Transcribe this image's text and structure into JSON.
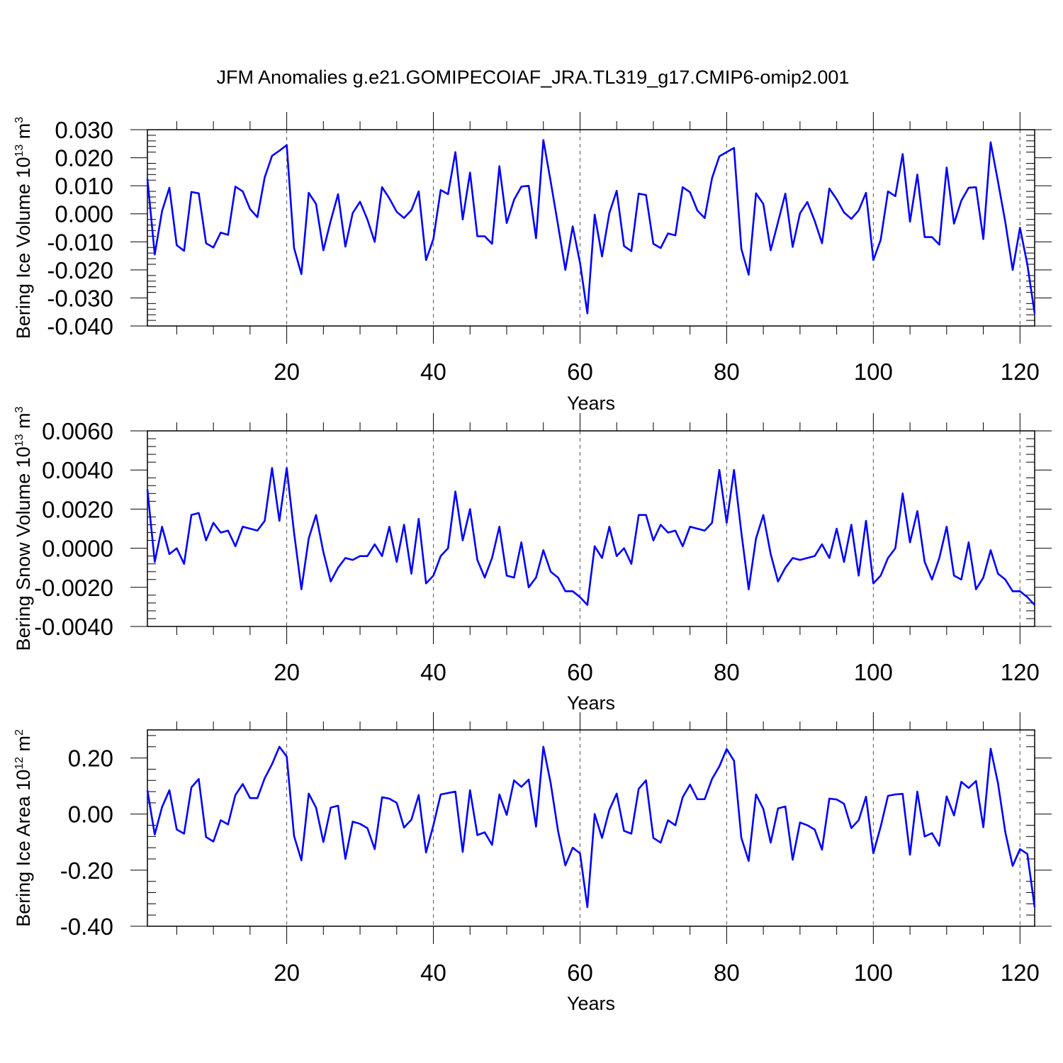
{
  "chart_data": [
    {
      "type": "line",
      "title": "JFM Anomalies g.e21.GOMIPECOIAF_JRA.TL319_g17.CMIP6-omip2.001",
      "ylabel": "Bering Ice Volume 10",
      "ylabel_exp": "13",
      "ylabel_unit": " m",
      "ylabel_unit_exp": "3",
      "xlabel": "Years",
      "xlim": [
        1,
        122
      ],
      "ylim": [
        -0.04,
        0.03
      ],
      "xticks": [
        20,
        40,
        60,
        80,
        100,
        120
      ],
      "xtick_labels": [
        "20",
        "40",
        "60",
        "80",
        "100",
        "120"
      ],
      "yticks": [
        -0.04,
        -0.03,
        -0.02,
        -0.01,
        0.0,
        0.01,
        0.02,
        0.03
      ],
      "ytick_labels": [
        "-0.040",
        "-0.030",
        "-0.020",
        "-0.010",
        "0.000",
        "0.010",
        "0.020",
        "0.030"
      ],
      "gridlines_x": [
        20,
        40,
        60,
        80,
        100,
        120
      ],
      "series": [
        {
          "name": "Bering Ice Volume",
          "color": "#0000ff",
          "x_start": 1,
          "values": [
            0.0125,
            -0.0145,
            0.001,
            0.0093,
            -0.0112,
            -0.0132,
            0.0078,
            0.0073,
            -0.0105,
            -0.012,
            -0.0067,
            -0.0075,
            0.0097,
            0.008,
            0.0017,
            -0.0012,
            0.013,
            0.0207,
            0.0225,
            0.0245,
            -0.0122,
            -0.0215,
            0.0075,
            0.0035,
            -0.013,
            -0.0025,
            0.007,
            -0.0117,
            0.0003,
            0.0043,
            -0.002,
            -0.01,
            0.0095,
            0.0055,
            0.0007,
            -0.0015,
            0.0013,
            0.008,
            -0.0165,
            -0.009,
            0.0085,
            0.007,
            0.022,
            -0.002,
            0.0147,
            -0.008,
            -0.008,
            -0.0107,
            0.017,
            -0.0033,
            0.005,
            0.0097,
            0.01,
            -0.0087,
            0.0263,
            0.0115,
            -0.004,
            -0.02,
            -0.0045,
            -0.0175,
            -0.0355,
            -0.0003,
            -0.0152,
            0.0003,
            0.0082,
            -0.0115,
            -0.0133,
            0.0072,
            0.0067,
            -0.0107,
            -0.0122,
            -0.007,
            -0.0077,
            0.0095,
            0.0077,
            0.0012,
            -0.0015,
            0.0127,
            0.0205,
            0.022,
            0.0235,
            -0.0125,
            -0.0217,
            0.0073,
            0.0035,
            -0.013,
            -0.003,
            0.0072,
            -0.0118,
            0.0002,
            0.0042,
            -0.0025,
            -0.0105,
            0.009,
            0.0052,
            0.0005,
            -0.0018,
            0.0012,
            0.0075,
            -0.0165,
            -0.0093,
            0.008,
            0.0063,
            0.0213,
            -0.0028,
            0.014,
            -0.0083,
            -0.0083,
            -0.011,
            0.0165,
            -0.0035,
            0.0047,
            0.0093,
            0.0095,
            -0.009,
            0.0255,
            0.0115,
            -0.003,
            -0.02,
            -0.005,
            -0.018,
            -0.0355
          ]
        }
      ]
    },
    {
      "type": "line",
      "title": "",
      "ylabel": "Bering Snow Volume 10",
      "ylabel_exp": "13",
      "ylabel_unit": " m",
      "ylabel_unit_exp": "3",
      "xlabel": "Years",
      "xlim": [
        1,
        122
      ],
      "ylim": [
        -0.004,
        0.006
      ],
      "xticks": [
        20,
        40,
        60,
        80,
        100,
        120
      ],
      "xtick_labels": [
        "20",
        "40",
        "60",
        "80",
        "100",
        "120"
      ],
      "yticks": [
        -0.004,
        -0.002,
        0.0,
        0.002,
        0.004,
        0.006
      ],
      "ytick_labels": [
        "-0.0040",
        "-0.0020",
        "0.0000",
        "0.0020",
        "0.0040",
        "0.0060"
      ],
      "gridlines_x": [
        20,
        40,
        60,
        80,
        100,
        120
      ],
      "series": [
        {
          "name": "Bering Snow Volume",
          "color": "#0000ff",
          "x_start": 1,
          "values": [
            0.003,
            -0.0007,
            0.0011,
            -0.0003,
            0.0,
            -0.0008,
            0.0017,
            0.0018,
            0.0004,
            0.0013,
            0.0008,
            0.0009,
            0.0001,
            0.0011,
            0.001,
            0.0009,
            0.0014,
            0.0041,
            0.0014,
            0.0041,
            0.0008,
            -0.0021,
            0.0005,
            0.0017,
            -0.0002,
            -0.0017,
            -0.001,
            -0.0005,
            -0.0006,
            -0.0004,
            -0.0004,
            0.0002,
            -0.0004,
            0.0011,
            -0.0007,
            0.0012,
            -0.0013,
            0.0015,
            -0.0018,
            -0.0014,
            -0.0004,
            0.0,
            0.0029,
            0.0004,
            0.002,
            -0.0006,
            -0.0015,
            -0.0005,
            0.0011,
            -0.0014,
            -0.0015,
            0.0003,
            -0.002,
            -0.0015,
            -0.0001,
            -0.0012,
            -0.0015,
            -0.0022,
            -0.0022,
            -0.0025,
            -0.0029,
            0.0001,
            -0.0005,
            0.0011,
            -0.0004,
            0.0,
            -0.0008,
            0.0017,
            0.0017,
            0.0004,
            0.0012,
            0.0008,
            0.0009,
            0.0001,
            0.0011,
            0.001,
            0.0009,
            0.0013,
            0.004,
            0.0013,
            0.004,
            0.0008,
            -0.0021,
            0.0005,
            0.0017,
            -0.0003,
            -0.0017,
            -0.001,
            -0.0005,
            -0.0006,
            -0.0005,
            -0.0004,
            0.0002,
            -0.0005,
            0.001,
            -0.0007,
            0.0012,
            -0.0014,
            0.0014,
            -0.0018,
            -0.0014,
            -0.0005,
            0.0,
            0.0028,
            0.0003,
            0.0019,
            -0.0007,
            -0.0016,
            -0.0005,
            0.0011,
            -0.0014,
            -0.0016,
            0.0003,
            -0.0021,
            -0.0015,
            -0.0001,
            -0.0013,
            -0.0016,
            -0.0022,
            -0.0022,
            -0.0025,
            -0.0029
          ]
        }
      ]
    },
    {
      "type": "line",
      "title": "",
      "ylabel": "Bering Ice Area 10",
      "ylabel_exp": "12",
      "ylabel_unit": " m",
      "ylabel_unit_exp": "2",
      "xlabel": "Years",
      "xlim": [
        1,
        122
      ],
      "ylim": [
        -0.4,
        0.3
      ],
      "xticks": [
        20,
        40,
        60,
        80,
        100,
        120
      ],
      "xtick_labels": [
        "20",
        "40",
        "60",
        "80",
        "100",
        "120"
      ],
      "yticks": [
        -0.4,
        -0.2,
        0.0,
        0.2
      ],
      "ytick_labels": [
        "-0.40",
        "-0.20",
        "0.00",
        "0.20"
      ],
      "gridlines_x": [
        20,
        40,
        60,
        80,
        100,
        120
      ],
      "series": [
        {
          "name": "Bering Ice Area",
          "color": "#0000ff",
          "x_start": 1,
          "values": [
            0.085,
            -0.073,
            0.025,
            0.085,
            -0.055,
            -0.07,
            0.095,
            0.125,
            -0.082,
            -0.098,
            -0.022,
            -0.037,
            0.068,
            0.107,
            0.057,
            0.057,
            0.128,
            0.178,
            0.24,
            0.205,
            -0.078,
            -0.165,
            0.073,
            0.023,
            -0.1,
            0.023,
            0.03,
            -0.16,
            -0.027,
            -0.035,
            -0.05,
            -0.125,
            0.06,
            0.055,
            0.04,
            -0.048,
            -0.02,
            0.068,
            -0.137,
            -0.04,
            0.07,
            0.075,
            0.08,
            -0.135,
            0.085,
            -0.075,
            -0.065,
            -0.11,
            0.07,
            -0.003,
            0.12,
            0.097,
            0.123,
            -0.045,
            0.24,
            0.11,
            -0.06,
            -0.183,
            -0.12,
            -0.14,
            -0.332,
            0.0,
            -0.085,
            0.015,
            0.073,
            -0.06,
            -0.07,
            0.09,
            0.12,
            -0.085,
            -0.102,
            -0.022,
            -0.04,
            0.06,
            0.105,
            0.053,
            0.053,
            0.125,
            0.17,
            0.232,
            0.19,
            -0.085,
            -0.167,
            0.07,
            0.018,
            -0.102,
            0.02,
            0.027,
            -0.163,
            -0.03,
            -0.04,
            -0.055,
            -0.127,
            0.055,
            0.052,
            0.037,
            -0.05,
            -0.022,
            0.062,
            -0.14,
            -0.045,
            0.065,
            0.07,
            0.072,
            -0.145,
            0.08,
            -0.08,
            -0.068,
            -0.113,
            0.063,
            -0.005,
            0.115,
            0.093,
            0.118,
            -0.047,
            0.233,
            0.11,
            -0.065,
            -0.185,
            -0.125,
            -0.142,
            -0.332
          ]
        }
      ]
    }
  ]
}
